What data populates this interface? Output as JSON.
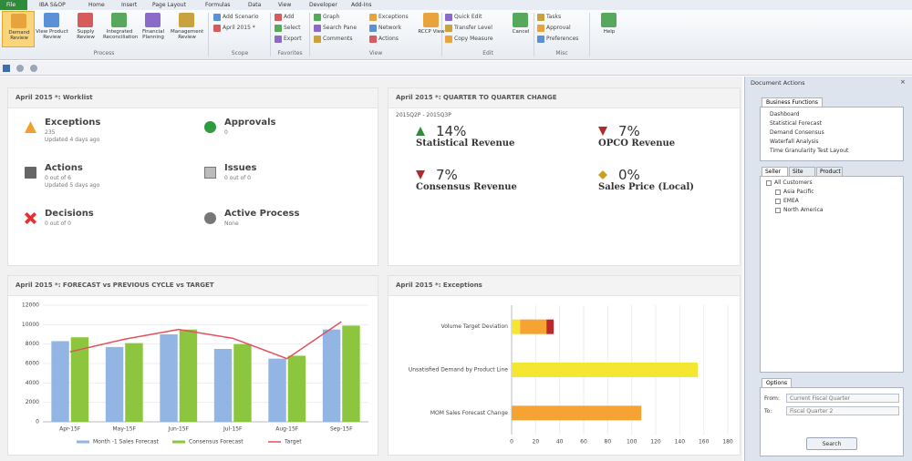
{
  "ribbon": {
    "tabs": [
      "File",
      "IBA S&OP",
      "Home",
      "Insert",
      "Page Layout",
      "Formulas",
      "Data",
      "View",
      "Developer",
      "Add-Ins"
    ],
    "groups": [
      {
        "name": "Process",
        "buttons": [
          "Demand Review",
          "View Product Review",
          "Supply Review",
          "Integrated Reconciliation",
          "Financial Planning",
          "Management Review"
        ]
      },
      {
        "name": "Scope",
        "buttons": [
          "Add Scenario",
          "April 2015 *"
        ]
      },
      {
        "name": "Favorites",
        "buttons": [
          "Add",
          "Select",
          "Export"
        ]
      },
      {
        "name": "View",
        "buttons": [
          "Graph",
          "Search Pane",
          "Comments",
          "Exceptions",
          "Network",
          "Actions",
          "RCCP View"
        ]
      },
      {
        "name": "Edit",
        "buttons": [
          "Quick Edit",
          "Transfer Level",
          "Copy Measure",
          "Cancel"
        ]
      },
      {
        "name": "Misc",
        "buttons": [
          "Tasks",
          "Approval",
          "Preferences",
          "Help"
        ]
      }
    ]
  },
  "worklist": {
    "title": "April 2015 *:  Worklist",
    "items": [
      {
        "label": "Exceptions",
        "lines": [
          "235",
          "Updated 4 days ago"
        ],
        "icon": "warning"
      },
      {
        "label": "Approvals",
        "lines": [
          "0"
        ],
        "icon": "check"
      },
      {
        "label": "Actions",
        "lines": [
          "0 out of 6",
          "Updated 5 days ago"
        ],
        "icon": "list"
      },
      {
        "label": "Issues",
        "lines": [
          "0 out of 0"
        ],
        "icon": "clipboard"
      },
      {
        "label": "Decisions",
        "lines": [
          "0 out of 0"
        ],
        "icon": "decision"
      },
      {
        "label": "Active Process",
        "lines": [
          "None"
        ],
        "icon": "gears"
      }
    ]
  },
  "qoq": {
    "title": "April 2015 *:  QUARTER TO QUARTER CHANGE",
    "period": "2015Q2P - 2015Q3P",
    "kpis": [
      {
        "value": "14%",
        "label": "Statistical Revenue",
        "trend": "up"
      },
      {
        "value": "7%",
        "label": "OPCO Revenue",
        "trend": "down"
      },
      {
        "value": "7%",
        "label": "Consensus Revenue",
        "trend": "down"
      },
      {
        "value": "0%",
        "label": "Sales Price (Local)",
        "trend": "flat"
      }
    ]
  },
  "chart_data": [
    {
      "type": "bar",
      "title": "April 2015 *:  FORECAST vs PREVIOUS CYCLE vs TARGET",
      "categories": [
        "Apr-15F",
        "May-15F",
        "Jun-15F",
        "Jul-15F",
        "Aug-15F",
        "Sep-15F"
      ],
      "series": [
        {
          "name": "Month -1 Sales Forecast",
          "color": "#92b5e3",
          "values": [
            8300,
            7700,
            9000,
            7500,
            6500,
            9500
          ]
        },
        {
          "name": "Consensus Forecast",
          "color": "#8cc63f",
          "values": [
            8700,
            8100,
            9500,
            8000,
            6800,
            9900
          ]
        },
        {
          "name": "Target",
          "color": "#e5505a",
          "type": "line",
          "values": [
            7200,
            8500,
            9500,
            8600,
            6500,
            10300
          ]
        }
      ],
      "ylim": [
        0,
        12000
      ],
      "yticks": [
        0,
        2000,
        4000,
        6000,
        8000,
        10000,
        12000
      ],
      "grid": true,
      "legend": "bottom"
    },
    {
      "type": "bar",
      "horizontal": true,
      "stacked": true,
      "title": "April 2015 *:  Exceptions",
      "categories": [
        "Volume Target Deviation",
        "Unsatisfied Demand by Product Line",
        "MOM Sales Forecast Change"
      ],
      "series": [
        {
          "color": "#f5e632",
          "values": [
            7,
            155,
            0
          ]
        },
        {
          "color": "#f5a332",
          "values": [
            22,
            0,
            108
          ]
        },
        {
          "color": "#c0272d",
          "values": [
            6,
            0,
            0
          ]
        }
      ],
      "xlim": [
        0,
        180
      ],
      "xticks": [
        0,
        20,
        40,
        60,
        80,
        100,
        120,
        140,
        160,
        180
      ],
      "grid": true
    }
  ],
  "pane": {
    "title": "Document Actions",
    "functions_tab": "Business Functions",
    "functions": [
      "Dashboard",
      "Statistical Forecast",
      "Demand Consensus",
      "Waterfall Analysis",
      "Time Granularity Test Layout"
    ],
    "tree_tabs": [
      "Seller",
      "Site",
      "Product"
    ],
    "tree": [
      {
        "label": "All Customers",
        "level": 0
      },
      {
        "label": "Asia Pacific",
        "level": 1
      },
      {
        "label": "EMEA",
        "level": 1
      },
      {
        "label": "North America",
        "level": 1
      }
    ],
    "options_tab": "Options",
    "options": [
      {
        "label": "From:",
        "value": "Current Fiscal Quarter"
      },
      {
        "label": "To:",
        "value": "Fiscal Quarter 2"
      }
    ],
    "button": "Search"
  }
}
